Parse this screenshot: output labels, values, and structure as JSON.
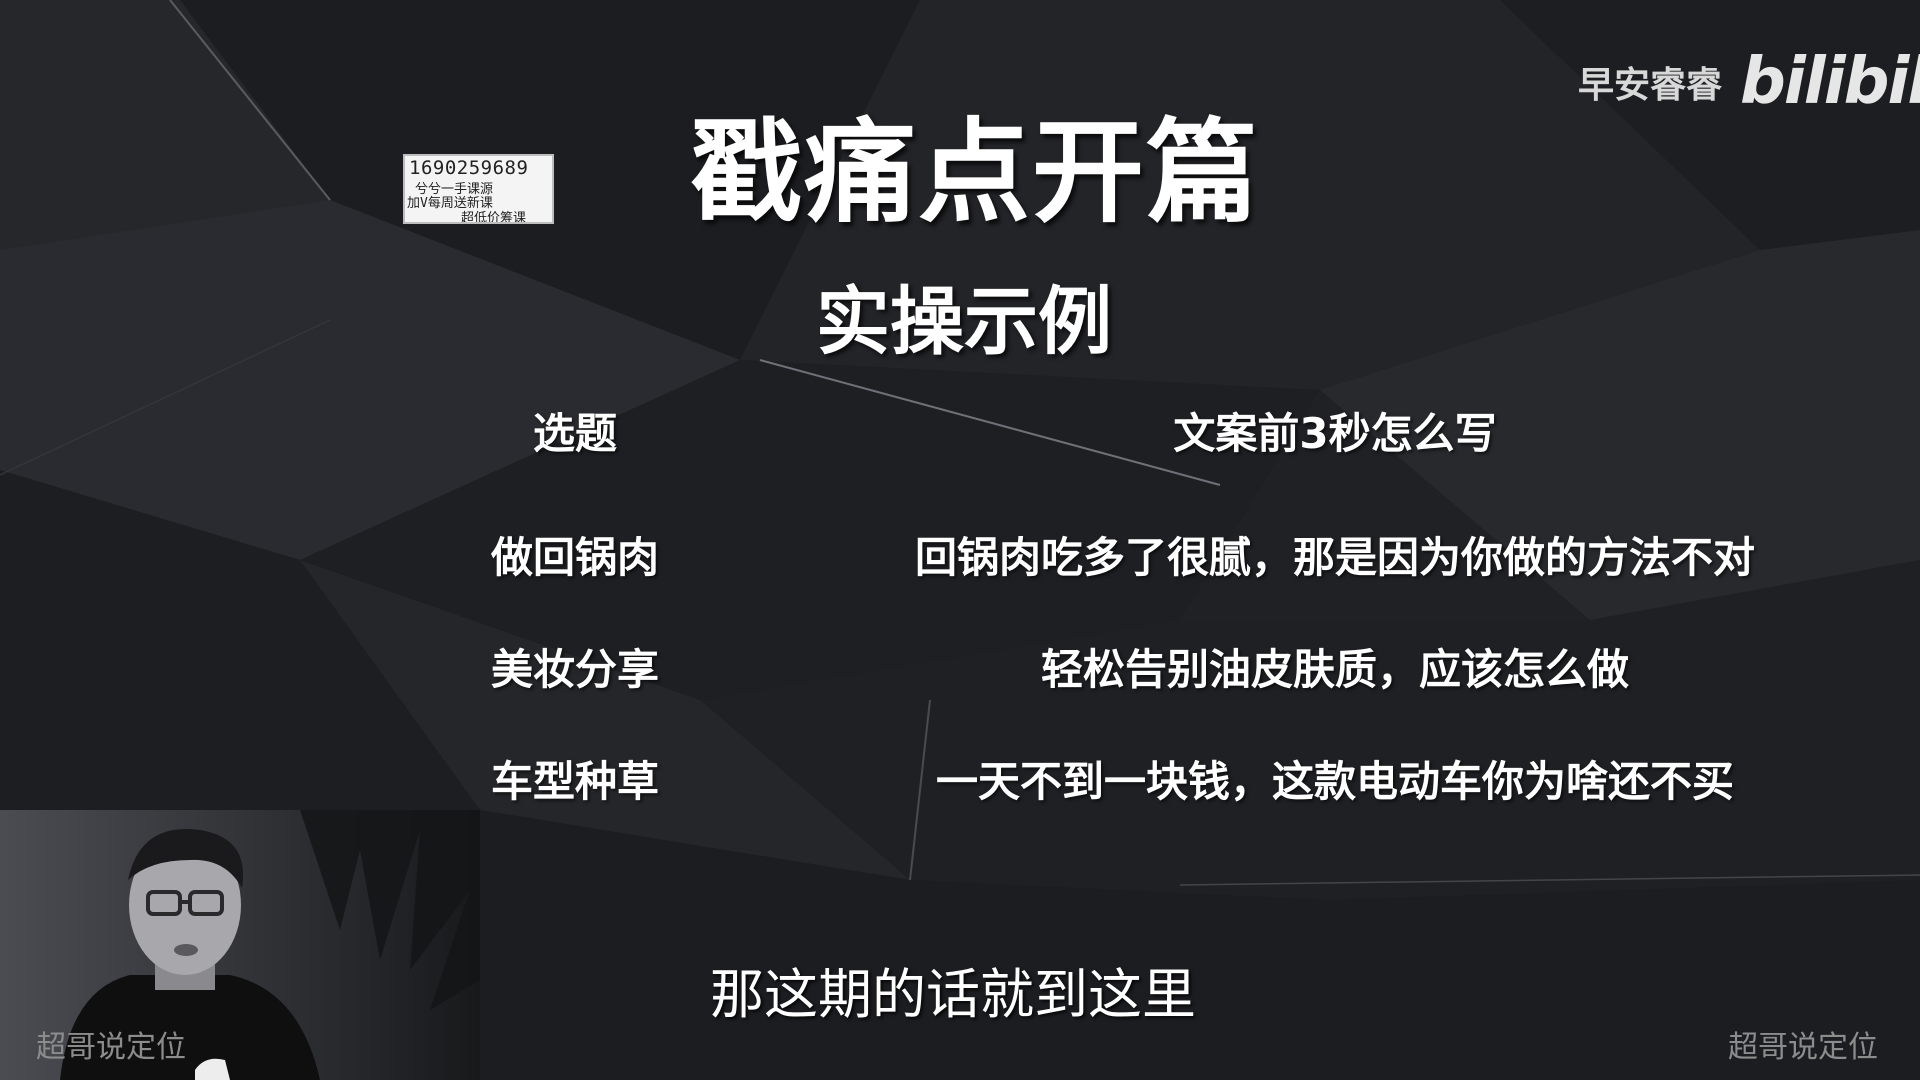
{
  "slide": {
    "title": "戳痛点开篇",
    "subtitle": "实操示例",
    "headers": {
      "topic": "选题",
      "copy": "文案前3秒怎么写"
    },
    "rows": [
      {
        "topic": "做回锅肉",
        "copy": "回锅肉吃多了很腻，那是因为你做的方法不对"
      },
      {
        "topic": "美妆分享",
        "copy": "轻松告别油皮肤质，应该怎么做"
      },
      {
        "topic": "车型种草",
        "copy": "一天不到一块钱，这款电动车你为啥还不买"
      }
    ]
  },
  "watermark_box": {
    "line1": "1690259689",
    "line2": "兮兮一手课源",
    "line3": "加V每周送新课",
    "line4": "超低价筹课"
  },
  "brand": {
    "name": "早安睿睿",
    "logo_text": "bilibili"
  },
  "caption": "那这期的话就到这里",
  "corner_marks": {
    "left": "超哥说定位",
    "right": "超哥说定位"
  },
  "colors": {
    "background": "#202125",
    "text": "#ffffff",
    "watermark": "#8c8c8c"
  }
}
